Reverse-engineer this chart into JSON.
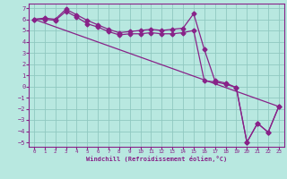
{
  "xlabel": "Windchill (Refroidissement éolien,°C)",
  "xlim": [
    0,
    23
  ],
  "ylim": [
    -5,
    7
  ],
  "bg_color": "#b8e8e0",
  "grid_color": "#90c8c0",
  "line_color": "#882288",
  "line1_x": [
    0,
    1,
    2,
    3,
    4,
    5,
    6,
    7,
    8,
    9,
    10,
    11,
    12,
    13,
    14,
    15,
    16,
    17,
    18,
    19,
    20,
    21,
    22,
    23
  ],
  "line1_y": [
    6.0,
    6.1,
    6.0,
    6.9,
    6.4,
    5.9,
    5.5,
    5.1,
    4.8,
    4.9,
    5.0,
    5.1,
    5.0,
    5.1,
    5.2,
    6.5,
    3.3,
    0.5,
    0.3,
    -0.1,
    -5.0,
    -3.3,
    -4.1,
    -1.8
  ],
  "line2_x": [
    0,
    1,
    2,
    3,
    4,
    5,
    6,
    7,
    8,
    9,
    10,
    11,
    12,
    13,
    14,
    15,
    16,
    17,
    18,
    19,
    20,
    21,
    22,
    23
  ],
  "line2_y": [
    6.0,
    6.0,
    5.9,
    6.7,
    6.2,
    5.6,
    5.3,
    4.9,
    4.6,
    4.7,
    4.7,
    4.8,
    4.7,
    4.7,
    4.8,
    5.0,
    0.5,
    0.4,
    0.2,
    -0.1,
    -5.0,
    -3.3,
    -4.1,
    -1.8
  ],
  "line3_x": [
    0,
    23
  ],
  "line3_y": [
    6.0,
    -1.8
  ],
  "xticks": [
    0,
    1,
    2,
    3,
    4,
    5,
    6,
    7,
    8,
    9,
    10,
    11,
    12,
    13,
    14,
    15,
    16,
    17,
    18,
    19,
    20,
    21,
    22,
    23
  ],
  "yticks": [
    -5,
    -4,
    -3,
    -2,
    -1,
    0,
    1,
    2,
    3,
    4,
    5,
    6,
    7
  ],
  "markersize": 2.5
}
